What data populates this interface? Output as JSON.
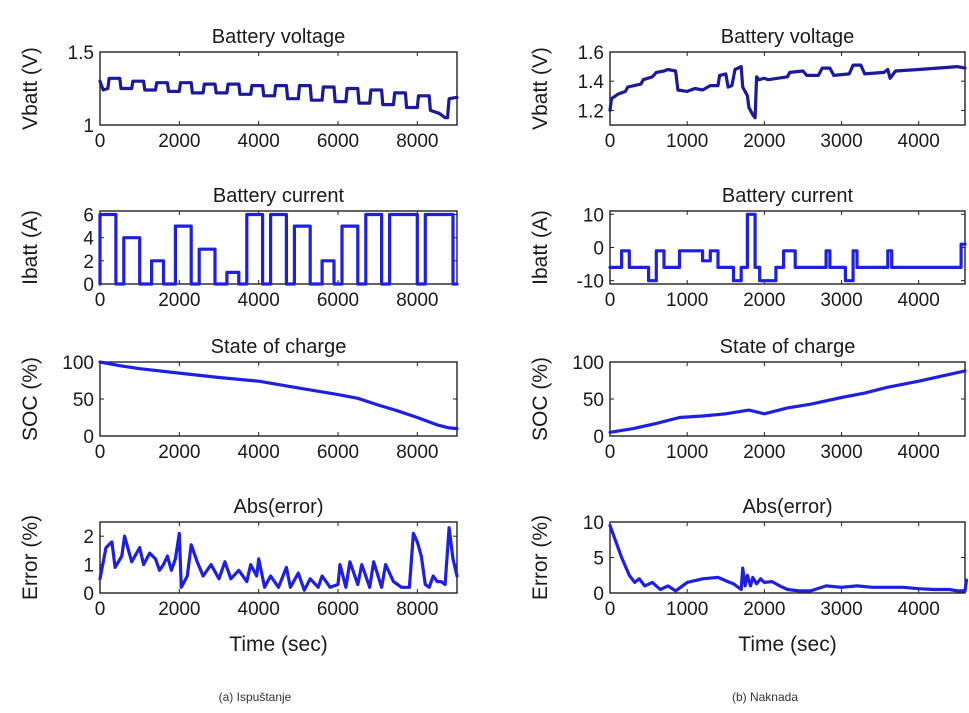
{
  "captions": {
    "left": "(a) Ispuštanje",
    "right": "(b) Naknada"
  },
  "line_color": "#1f1fe0",
  "voltage_line_color": "#1a1a9a",
  "chart_data": [
    {
      "id": "a-voltage",
      "type": "line",
      "title": "Battery voltage",
      "xlabel": "",
      "ylabel": "Vbatt (V)",
      "xlim": [
        0,
        9000
      ],
      "ylim": [
        1,
        1.5
      ],
      "xticks": [
        0,
        2000,
        4000,
        6000,
        8000
      ],
      "yticks": [
        1,
        1.5
      ],
      "series": [
        {
          "x": [
            0,
            80,
            200,
            230,
            500,
            530,
            800,
            830,
            1100,
            1130,
            1400,
            1430,
            1700,
            1730,
            2000,
            2030,
            2300,
            2330,
            2600,
            2630,
            2900,
            2930,
            3200,
            3230,
            3500,
            3530,
            3800,
            3830,
            4100,
            4130,
            4400,
            4430,
            4700,
            4730,
            5000,
            5030,
            5300,
            5330,
            5600,
            5630,
            5900,
            5930,
            6200,
            6230,
            6500,
            6530,
            6800,
            6830,
            7100,
            7130,
            7400,
            7430,
            7700,
            7730,
            8000,
            8030,
            8300,
            8330,
            8550,
            8700,
            8760,
            8800,
            9000
          ],
          "y": [
            1.3,
            1.24,
            1.25,
            1.32,
            1.32,
            1.25,
            1.25,
            1.3,
            1.3,
            1.24,
            1.24,
            1.29,
            1.29,
            1.23,
            1.23,
            1.29,
            1.29,
            1.22,
            1.22,
            1.28,
            1.28,
            1.22,
            1.22,
            1.28,
            1.28,
            1.21,
            1.21,
            1.27,
            1.27,
            1.2,
            1.2,
            1.27,
            1.27,
            1.18,
            1.18,
            1.27,
            1.27,
            1.17,
            1.17,
            1.26,
            1.26,
            1.16,
            1.16,
            1.25,
            1.25,
            1.15,
            1.15,
            1.24,
            1.24,
            1.14,
            1.14,
            1.22,
            1.22,
            1.12,
            1.12,
            1.2,
            1.2,
            1.1,
            1.08,
            1.05,
            1.05,
            1.18,
            1.19
          ]
        }
      ]
    },
    {
      "id": "a-current",
      "type": "line",
      "title": "Battery current",
      "xlabel": "",
      "ylabel": "Ibatt (A)",
      "xlim": [
        0,
        9000
      ],
      "ylim": [
        0,
        6.3
      ],
      "xticks": [
        0,
        2000,
        4000,
        6000,
        8000
      ],
      "yticks": [
        0,
        2,
        4,
        6
      ],
      "series": [
        {
          "x": [
            0,
            0,
            400,
            400,
            600,
            600,
            1000,
            1000,
            1300,
            1300,
            1600,
            1600,
            1900,
            1900,
            2300,
            2300,
            2500,
            2500,
            2900,
            2900,
            3200,
            3200,
            3500,
            3500,
            3700,
            3700,
            4100,
            4100,
            4300,
            4300,
            4700,
            4700,
            4900,
            4900,
            5300,
            5300,
            5600,
            5600,
            5900,
            5900,
            6100,
            6100,
            6500,
            6500,
            6700,
            6700,
            7100,
            7100,
            7300,
            7300,
            8000,
            8000,
            8200,
            8200,
            8900,
            8900,
            9000
          ],
          "y": [
            0,
            6,
            6,
            0,
            0,
            4,
            4,
            0,
            0,
            2,
            2,
            0,
            0,
            5,
            5,
            0,
            0,
            3,
            3,
            0,
            0,
            1,
            1,
            0,
            0,
            6,
            6,
            0,
            0,
            6,
            6,
            0,
            0,
            5,
            5,
            0,
            0,
            2,
            2,
            0,
            0,
            5,
            5,
            0,
            0,
            6,
            6,
            0,
            0,
            6,
            6,
            0,
            0,
            6,
            6,
            0,
            0
          ]
        }
      ]
    },
    {
      "id": "a-soc",
      "type": "line",
      "title": "State of charge",
      "xlabel": "",
      "ylabel": "SOC (%)",
      "xlim": [
        0,
        9000
      ],
      "ylim": [
        0,
        100
      ],
      "xticks": [
        0,
        2000,
        4000,
        6000,
        8000
      ],
      "yticks": [
        0,
        50,
        100
      ],
      "series": [
        {
          "x": [
            0,
            500,
            1000,
            2000,
            3000,
            4000,
            5000,
            6000,
            6500,
            7000,
            7500,
            8000,
            8500,
            8800,
            9000
          ],
          "y": [
            100,
            95,
            91,
            85,
            79,
            74,
            65,
            56,
            51,
            42,
            34,
            25,
            15,
            11,
            10
          ]
        }
      ]
    },
    {
      "id": "a-error",
      "type": "line",
      "title": "Abs(error)",
      "xlabel": "Time (sec)",
      "ylabel": "Error (%)",
      "xlim": [
        0,
        9000
      ],
      "ylim": [
        0,
        2.5
      ],
      "xticks": [
        0,
        2000,
        4000,
        6000,
        8000
      ],
      "yticks": [
        0,
        1,
        2
      ],
      "series": [
        {
          "x": [
            0,
            150,
            300,
            380,
            550,
            620,
            800,
            1000,
            1100,
            1250,
            1400,
            1500,
            1600,
            1700,
            1800,
            1900,
            2000,
            2050,
            2200,
            2300,
            2450,
            2600,
            2800,
            3000,
            3150,
            3300,
            3500,
            3700,
            3800,
            3950,
            4000,
            4150,
            4300,
            4500,
            4700,
            4800,
            5000,
            5150,
            5300,
            5500,
            5600,
            5800,
            6000,
            6050,
            6200,
            6300,
            6500,
            6600,
            6800,
            6900,
            7100,
            7200,
            7400,
            7600,
            7800,
            7900,
            8000,
            8100,
            8200,
            8300,
            8400,
            8500,
            8600,
            8700,
            8800,
            8900,
            9000
          ],
          "y": [
            0.5,
            1.6,
            1.8,
            0.9,
            1.3,
            2.0,
            1.1,
            1.6,
            1.0,
            1.4,
            1.2,
            0.8,
            1.0,
            1.3,
            0.8,
            1.2,
            2.1,
            0.2,
            0.6,
            1.7,
            1.1,
            0.6,
            1.0,
            0.5,
            1.1,
            0.5,
            0.8,
            0.4,
            1.0,
            0.6,
            1.2,
            0.2,
            0.6,
            0.2,
            0.9,
            0.2,
            0.7,
            0.1,
            0.5,
            0.2,
            0.6,
            0.2,
            0.3,
            1.0,
            0.2,
            1.1,
            0.3,
            1.0,
            0.2,
            1.1,
            0.2,
            1.0,
            0.4,
            0.2,
            0.2,
            2.1,
            1.8,
            1.3,
            0.3,
            0.2,
            0.6,
            0.4,
            0.4,
            0.3,
            2.3,
            1.2,
            0.6
          ]
        }
      ]
    },
    {
      "id": "b-voltage",
      "type": "line",
      "title": "Battery voltage",
      "xlabel": "",
      "ylabel": "Vbatt (V)",
      "xlim": [
        0,
        4600
      ],
      "ylim": [
        1.1,
        1.6
      ],
      "xticks": [
        0,
        1000,
        2000,
        3000,
        4000
      ],
      "yticks": [
        1.2,
        1.4,
        1.6
      ],
      "series": [
        {
          "x": [
            0,
            20,
            100,
            200,
            230,
            400,
            430,
            550,
            600,
            700,
            750,
            850,
            880,
            1000,
            1100,
            1200,
            1300,
            1400,
            1420,
            1500,
            1530,
            1580,
            1620,
            1700,
            1720,
            1780,
            1800,
            1850,
            1880,
            1900,
            1930,
            2000,
            2050,
            2300,
            2330,
            2500,
            2550,
            2700,
            2750,
            2850,
            2900,
            3100,
            3150,
            3250,
            3300,
            3550,
            3600,
            3630,
            3700,
            4000,
            4500,
            4600
          ],
          "y": [
            1.2,
            1.28,
            1.31,
            1.33,
            1.36,
            1.38,
            1.41,
            1.43,
            1.46,
            1.47,
            1.48,
            1.47,
            1.34,
            1.33,
            1.35,
            1.34,
            1.37,
            1.37,
            1.44,
            1.45,
            1.36,
            1.37,
            1.48,
            1.5,
            1.36,
            1.3,
            1.22,
            1.17,
            1.15,
            1.43,
            1.41,
            1.42,
            1.41,
            1.43,
            1.46,
            1.47,
            1.44,
            1.44,
            1.49,
            1.49,
            1.44,
            1.45,
            1.51,
            1.51,
            1.45,
            1.46,
            1.48,
            1.42,
            1.47,
            1.48,
            1.5,
            1.49
          ]
        }
      ]
    },
    {
      "id": "b-current",
      "type": "line",
      "title": "Battery current",
      "xlabel": "",
      "ylabel": "Ibatt (A)",
      "xlim": [
        0,
        4600
      ],
      "ylim": [
        -11,
        11
      ],
      "xticks": [
        0,
        1000,
        2000,
        3000,
        4000
      ],
      "yticks": [
        -10,
        0,
        10
      ],
      "series": [
        {
          "x": [
            0,
            0,
            150,
            150,
            250,
            250,
            500,
            500,
            600,
            600,
            700,
            700,
            900,
            900,
            1200,
            1200,
            1300,
            1300,
            1400,
            1400,
            1600,
            1600,
            1700,
            1700,
            1780,
            1780,
            1880,
            1880,
            1940,
            1940,
            2150,
            2150,
            2250,
            2250,
            2400,
            2400,
            2450,
            2450,
            2800,
            2800,
            2850,
            2850,
            3050,
            3050,
            3150,
            3150,
            3200,
            3200,
            3600,
            3600,
            3650,
            3650,
            4550,
            4550,
            4600
          ],
          "y": [
            -6,
            -6,
            -6,
            -1,
            -1,
            -6,
            -6,
            -10,
            -10,
            -1,
            -1,
            -6,
            -6,
            -1,
            -1,
            -4,
            -4,
            -1,
            -1,
            -6,
            -6,
            -10,
            -10,
            -6,
            -6,
            10,
            10,
            -6,
            -6,
            -10,
            -10,
            -6,
            -6,
            -1,
            -1,
            -6,
            -6,
            -6,
            -6,
            -1,
            -1,
            -6,
            -6,
            -10,
            -10,
            -1,
            -1,
            -6,
            -6,
            -1,
            -1,
            -6,
            -6,
            1,
            1
          ]
        }
      ]
    },
    {
      "id": "b-soc",
      "type": "line",
      "title": "State of charge",
      "xlabel": "",
      "ylabel": "SOC (%)",
      "xlim": [
        0,
        4600
      ],
      "ylim": [
        0,
        100
      ],
      "xticks": [
        0,
        1000,
        2000,
        3000,
        4000
      ],
      "yticks": [
        0,
        50,
        100
      ],
      "series": [
        {
          "x": [
            0,
            300,
            600,
            900,
            1200,
            1500,
            1800,
            2000,
            2300,
            2600,
            3000,
            3300,
            3600,
            4000,
            4300,
            4600
          ],
          "y": [
            5,
            10,
            17,
            25,
            27,
            30,
            35,
            30,
            38,
            43,
            52,
            58,
            66,
            74,
            81,
            88
          ]
        }
      ]
    },
    {
      "id": "b-error",
      "type": "line",
      "title": "Abs(error)",
      "xlabel": "Time (sec)",
      "ylabel": "Error (%)",
      "xlim": [
        0,
        4600
      ],
      "ylim": [
        0,
        10
      ],
      "xticks": [
        0,
        1000,
        2000,
        3000,
        4000
      ],
      "yticks": [
        0,
        5,
        10
      ],
      "series": [
        {
          "x": [
            0,
            50,
            150,
            250,
            320,
            380,
            450,
            550,
            650,
            750,
            850,
            1000,
            1200,
            1400,
            1550,
            1600,
            1700,
            1720,
            1750,
            1780,
            1820,
            1850,
            1900,
            1950,
            2000,
            2100,
            2200,
            2300,
            2450,
            2600,
            2800,
            3000,
            3200,
            3400,
            3600,
            3800,
            4000,
            4200,
            4400,
            4500,
            4600,
            4620
          ],
          "y": [
            9.5,
            8,
            5,
            2.5,
            1.5,
            2,
            1,
            1.5,
            0.5,
            1,
            0.3,
            1.5,
            2,
            2.2,
            1.5,
            1.3,
            0.5,
            3.5,
            1.0,
            2.5,
            1.0,
            2.2,
            1.3,
            2,
            1.5,
            1.6,
            1.0,
            0.5,
            0.3,
            0.3,
            1.0,
            0.8,
            1.0,
            0.8,
            0.8,
            0.8,
            0.6,
            0.5,
            0.5,
            0.3,
            0.3,
            1.8
          ]
        }
      ]
    }
  ]
}
